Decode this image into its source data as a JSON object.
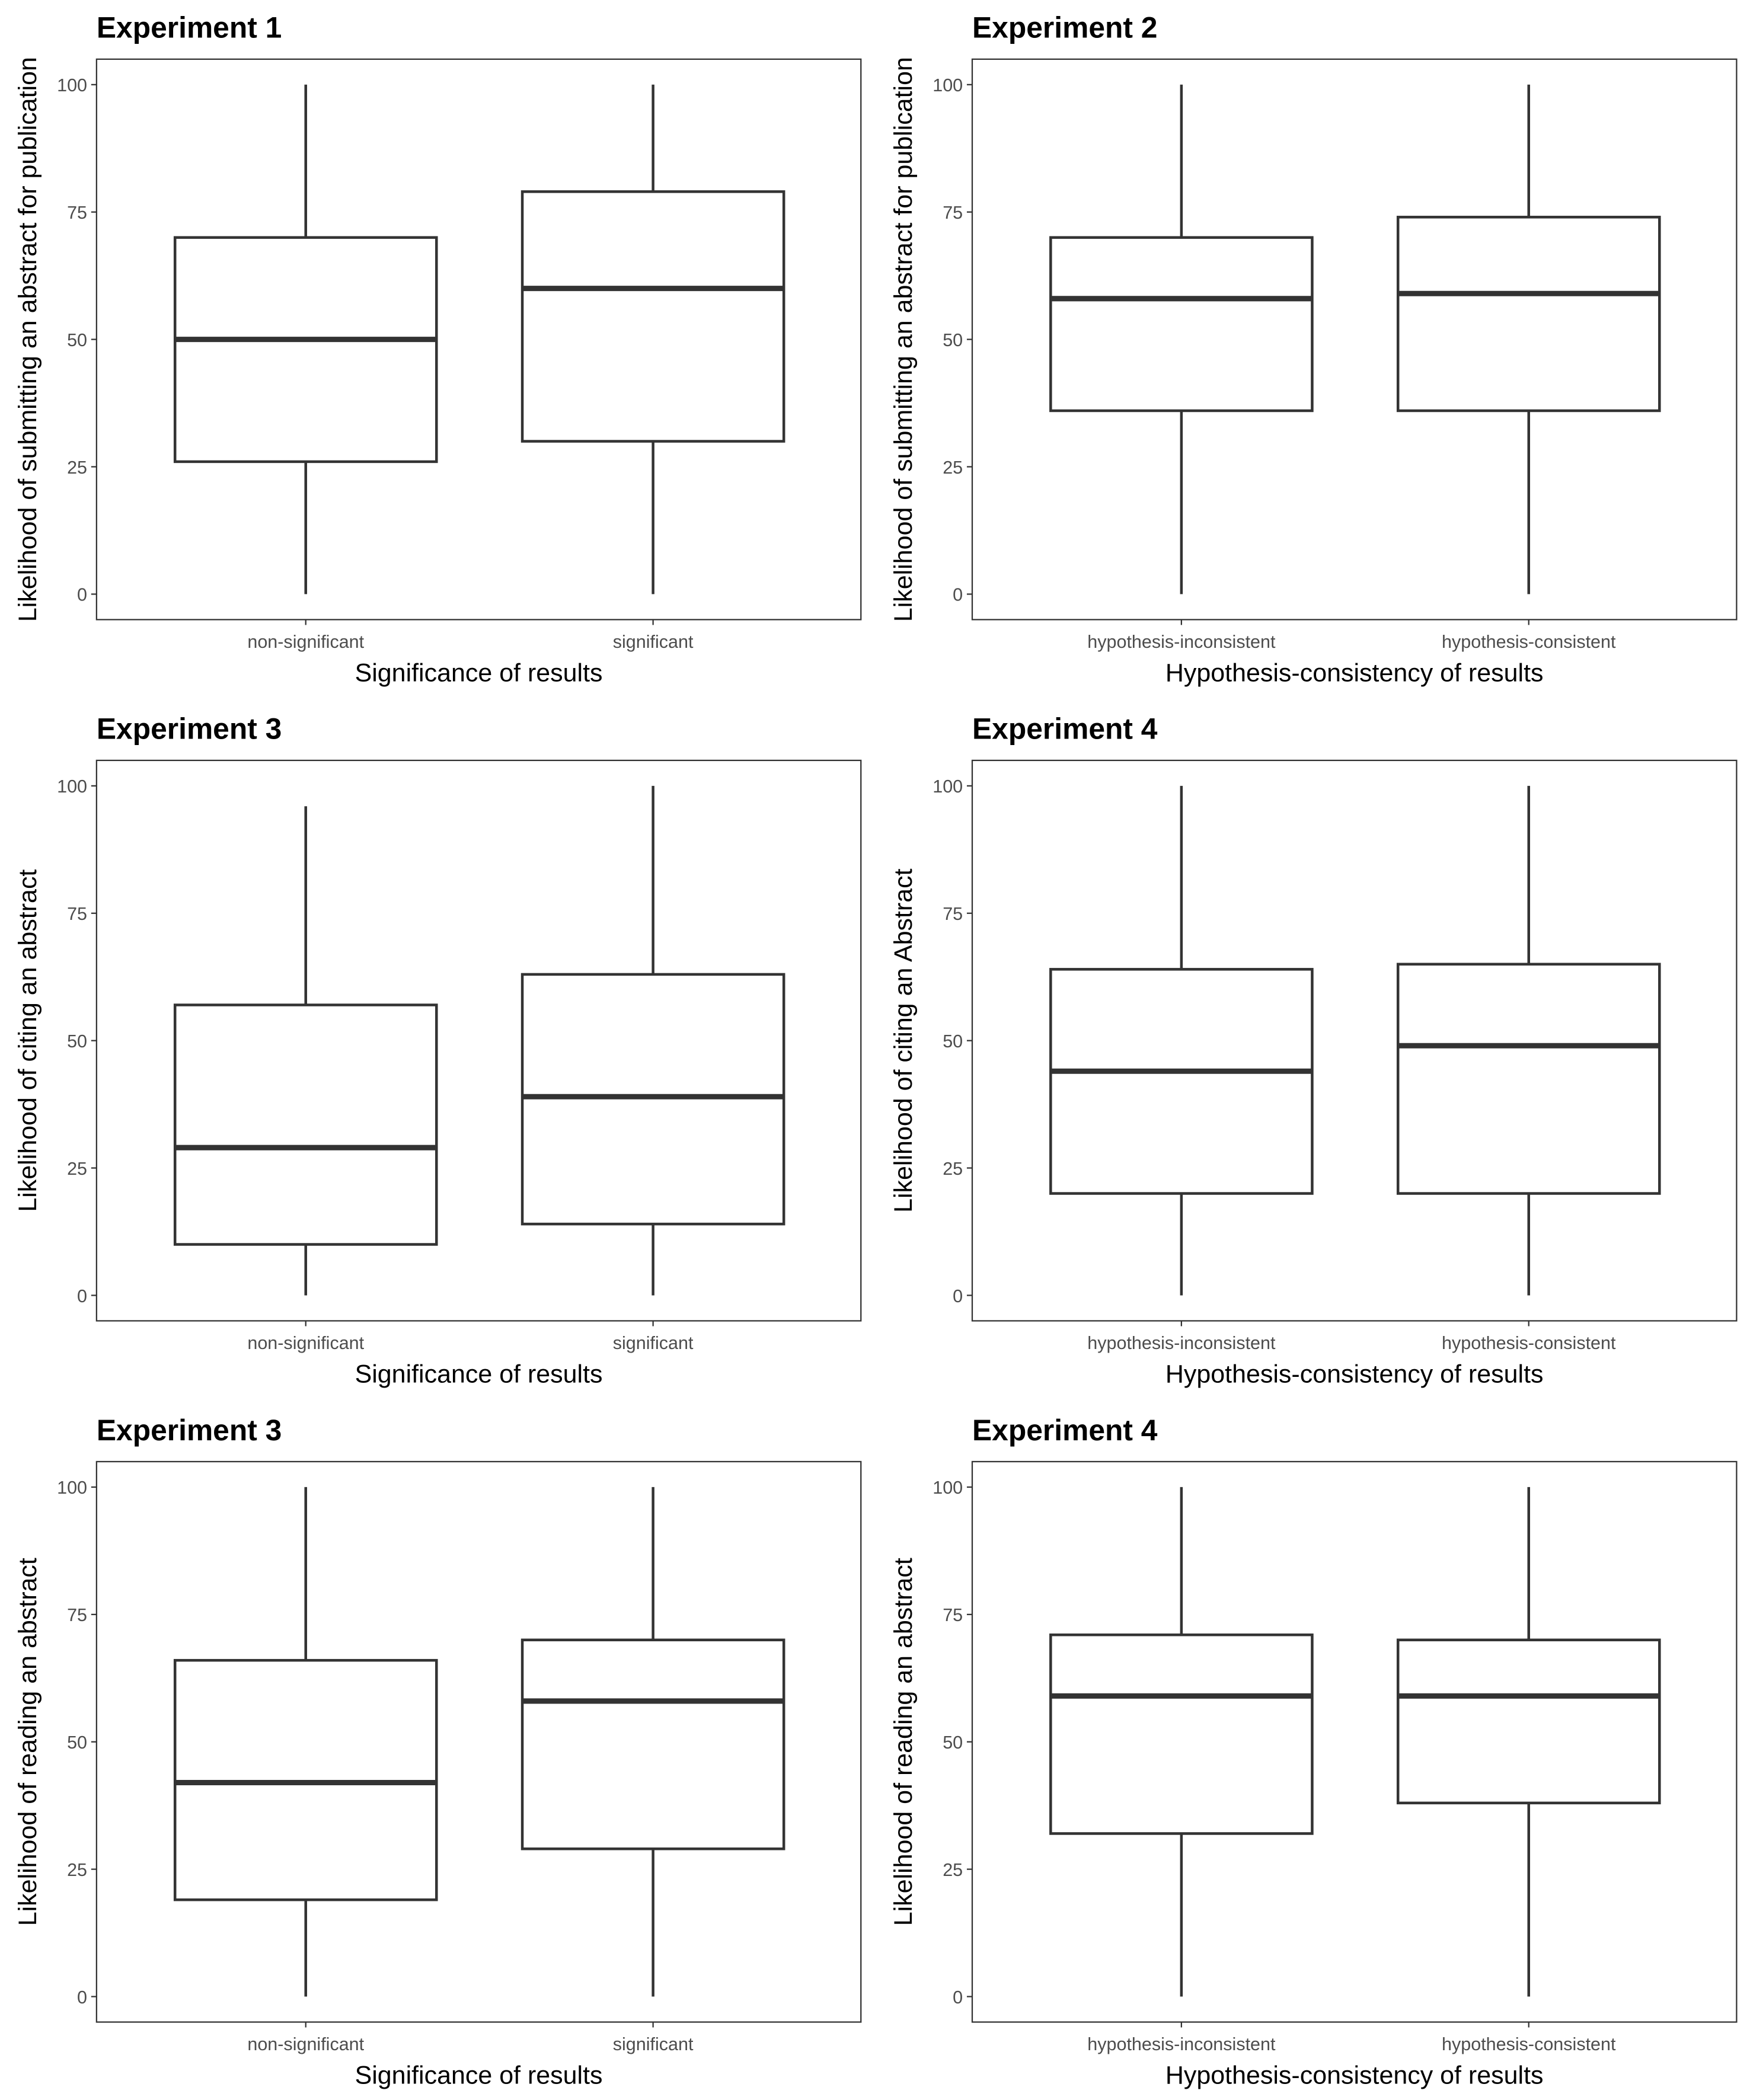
{
  "chart_data": [
    {
      "type": "box",
      "title": "Experiment 1",
      "xlabel": "Significance of results",
      "ylabel": "Likelihood of submitting an abstract for publication",
      "ylim": [
        0,
        100
      ],
      "yticks": [
        "0",
        "25",
        "50",
        "75",
        "100"
      ],
      "categories": [
        "non-significant",
        "significant"
      ],
      "boxes": [
        {
          "min": 0,
          "q1": 26,
          "median": 50,
          "q3": 70,
          "max": 100
        },
        {
          "min": 0,
          "q1": 30,
          "median": 60,
          "q3": 79,
          "max": 100
        }
      ]
    },
    {
      "type": "box",
      "title": "Experiment 2",
      "xlabel": "Hypothesis-consistency of results",
      "ylabel": "Likelihood of submitting an abstract for publication",
      "ylim": [
        0,
        100
      ],
      "yticks": [
        "0",
        "25",
        "50",
        "75",
        "100"
      ],
      "categories": [
        "hypothesis-inconsistent",
        "hypothesis-consistent"
      ],
      "boxes": [
        {
          "min": 0,
          "q1": 36,
          "median": 58,
          "q3": 70,
          "max": 100
        },
        {
          "min": 0,
          "q1": 36,
          "median": 59,
          "q3": 74,
          "max": 100
        }
      ]
    },
    {
      "type": "box",
      "title": "Experiment 3",
      "xlabel": "Significance of results",
      "ylabel": "Likelihood of citing an abstract",
      "ylim": [
        0,
        100
      ],
      "yticks": [
        "0",
        "25",
        "50",
        "75",
        "100"
      ],
      "categories": [
        "non-significant",
        "significant"
      ],
      "boxes": [
        {
          "min": 0,
          "q1": 10,
          "median": 29,
          "q3": 57,
          "max": 96
        },
        {
          "min": 0,
          "q1": 14,
          "median": 39,
          "q3": 63,
          "max": 100
        }
      ]
    },
    {
      "type": "box",
      "title": "Experiment 4",
      "xlabel": "Hypothesis-consistency of results",
      "ylabel": "Likelihood of citing an Abstract",
      "ylim": [
        0,
        100
      ],
      "yticks": [
        "0",
        "25",
        "50",
        "75",
        "100"
      ],
      "categories": [
        "hypothesis-inconsistent",
        "hypothesis-consistent"
      ],
      "boxes": [
        {
          "min": 0,
          "q1": 20,
          "median": 44,
          "q3": 64,
          "max": 100
        },
        {
          "min": 0,
          "q1": 20,
          "median": 49,
          "q3": 65,
          "max": 100
        }
      ]
    },
    {
      "type": "box",
      "title": "Experiment 3",
      "xlabel": "Significance of results",
      "ylabel": "Likelihood of reading an abstract",
      "ylim": [
        0,
        100
      ],
      "yticks": [
        "0",
        "25",
        "50",
        "75",
        "100"
      ],
      "categories": [
        "non-significant",
        "significant"
      ],
      "boxes": [
        {
          "min": 0,
          "q1": 19,
          "median": 42,
          "q3": 66,
          "max": 100
        },
        {
          "min": 0,
          "q1": 29,
          "median": 58,
          "q3": 70,
          "max": 100
        }
      ]
    },
    {
      "type": "box",
      "title": "Experiment 4",
      "xlabel": "Hypothesis-consistency of results",
      "ylabel": "Likelihood of reading an abstract",
      "ylim": [
        0,
        100
      ],
      "yticks": [
        "0",
        "25",
        "50",
        "75",
        "100"
      ],
      "categories": [
        "hypothesis-inconsistent",
        "hypothesis-consistent"
      ],
      "boxes": [
        {
          "min": 0,
          "q1": 32,
          "median": 59,
          "q3": 71,
          "max": 100
        },
        {
          "min": 0,
          "q1": 38,
          "median": 59,
          "q3": 70,
          "max": 100
        }
      ]
    }
  ]
}
